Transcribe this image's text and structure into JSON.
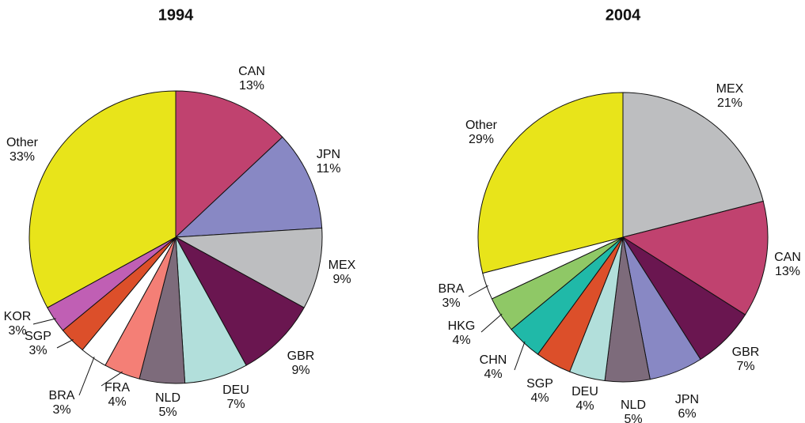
{
  "chart_data": [
    {
      "type": "pie",
      "title": "1994",
      "categories": [
        "CAN",
        "JPN",
        "MEX",
        "GBR",
        "DEU",
        "NLD",
        "FRA",
        "BRA",
        "SGP",
        "KOR",
        "Other"
      ],
      "values": [
        13,
        11,
        9,
        9,
        7,
        5,
        4,
        3,
        3,
        3,
        33
      ],
      "value_labels": [
        "13%",
        "11%",
        "9%",
        "9%",
        "7%",
        "5%",
        "4%",
        "3%",
        "3%",
        "3%",
        "33%"
      ],
      "colors": [
        "#c0426f",
        "#8888c4",
        "#bdbec0",
        "#6a1650",
        "#b2dfdb",
        "#7d6b7b",
        "#f47f76",
        "#ffffff",
        "#dc4f2a",
        "#c05fb4",
        "#e8e41a"
      ]
    },
    {
      "type": "pie",
      "title": "2004",
      "categories": [
        "MEX",
        "CAN",
        "GBR",
        "JPN",
        "NLD",
        "DEU",
        "SGP",
        "CHN",
        "HKG",
        "BRA",
        "Other"
      ],
      "values": [
        21,
        13,
        7,
        6,
        5,
        4,
        4,
        4,
        4,
        3,
        29
      ],
      "value_labels": [
        "21%",
        "13%",
        "7%",
        "6%",
        "5%",
        "4%",
        "4%",
        "4%",
        "4%",
        "3%",
        "29%"
      ],
      "colors": [
        "#bdbec0",
        "#c0426f",
        "#6a1650",
        "#8888c4",
        "#7d6b7b",
        "#b2dfdb",
        "#dc4f2a",
        "#20b9a8",
        "#8fc866",
        "#ffffff",
        "#e8e41a"
      ]
    }
  ]
}
